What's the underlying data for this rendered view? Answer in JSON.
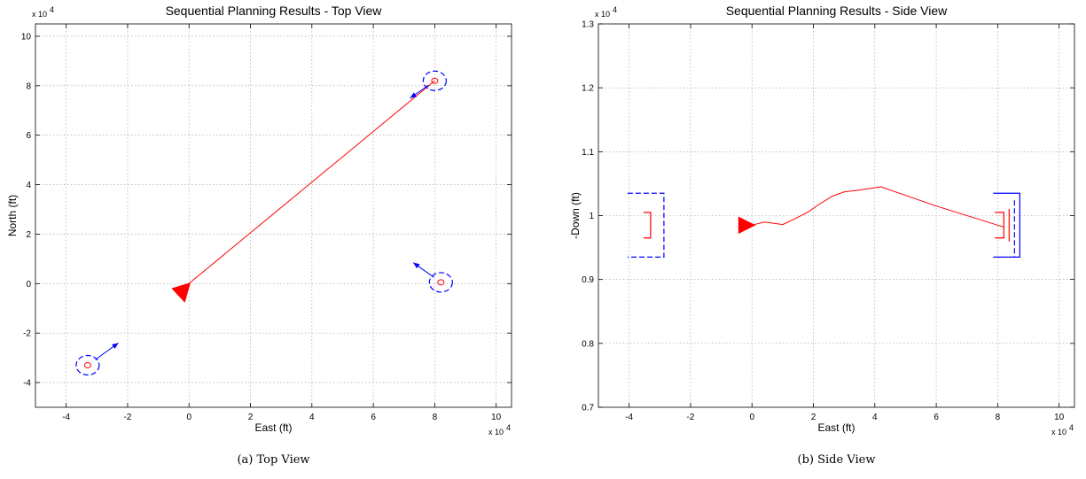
{
  "colors": {
    "path": "#ff0000",
    "target": "#0000ff",
    "vehicle": "#ff0000"
  },
  "chart_data": [
    {
      "id": "top",
      "type": "scatter",
      "title": "Sequential Planning Results - Top View",
      "xlabel": "East (ft)",
      "ylabel": "North (ft)",
      "x_exponent": "x 10",
      "x_exponent_power": "4",
      "y_exponent": "x 10",
      "y_exponent_power": "4",
      "xlim": [
        -5,
        10.5
      ],
      "ylim": [
        -5,
        10.5
      ],
      "xticks": [
        -4,
        -2,
        0,
        2,
        4,
        6,
        8,
        10
      ],
      "yticks": [
        -4,
        -2,
        0,
        2,
        4,
        6,
        8,
        10
      ],
      "grid": true,
      "caption": "(a)  Top View",
      "path": [
        [
          -0.2,
          -0.2
        ],
        [
          8.0,
          8.2
        ]
      ],
      "vehicle": {
        "x": -0.2,
        "y": -0.2,
        "heading": "southwest"
      },
      "targets": [
        {
          "x": 8.0,
          "y": 8.2,
          "arrow_to": [
            7.2,
            7.5
          ]
        },
        {
          "x": 8.2,
          "y": 0.05,
          "arrow_to": [
            7.3,
            0.85
          ]
        },
        {
          "x": -3.3,
          "y": -3.3,
          "arrow_to": [
            -2.3,
            -2.4
          ]
        }
      ]
    },
    {
      "id": "side",
      "type": "line",
      "title": "Sequential Planning Results - Side View",
      "xlabel": "East (ft)",
      "ylabel": "-Down (ft)",
      "x_exponent": "x 10",
      "x_exponent_power": "4",
      "y_exponent": "x 10",
      "y_exponent_power": "4",
      "xlim": [
        -5,
        10.5
      ],
      "ylim": [
        0.7,
        1.3
      ],
      "xticks": [
        -4,
        -2,
        0,
        2,
        4,
        6,
        8,
        10
      ],
      "yticks": [
        0.7,
        0.8,
        0.9,
        1.0,
        1.1,
        1.2,
        1.3
      ],
      "ytick_labels": [
        "0.7",
        "0.8",
        "0.9",
        "1",
        "1.1",
        "1.2",
        "1.3"
      ],
      "grid": true,
      "caption": "(b)  Side View",
      "path": [
        [
          0.0,
          0.985
        ],
        [
          0.4,
          0.99
        ],
        [
          0.7,
          0.988
        ],
        [
          1.0,
          0.986
        ],
        [
          1.4,
          0.995
        ],
        [
          1.8,
          1.005
        ],
        [
          2.2,
          1.018
        ],
        [
          2.6,
          1.03
        ],
        [
          3.0,
          1.037
        ],
        [
          3.5,
          1.04
        ],
        [
          4.2,
          1.045
        ],
        [
          6.0,
          1.015
        ],
        [
          8.0,
          0.985
        ],
        [
          8.2,
          0.982
        ]
      ],
      "vehicle": {
        "x": -0.2,
        "y": 0.985,
        "heading": "east"
      },
      "brackets": [
        {
          "x": -3.3,
          "red_y": [
            0.965,
            1.005
          ],
          "blue_y": [
            0.935,
            1.035
          ],
          "side": "left"
        },
        {
          "x": 8.2,
          "red_y": [
            0.965,
            1.005
          ],
          "blue_y": [
            0.935,
            1.035
          ],
          "side": "right"
        }
      ]
    }
  ]
}
